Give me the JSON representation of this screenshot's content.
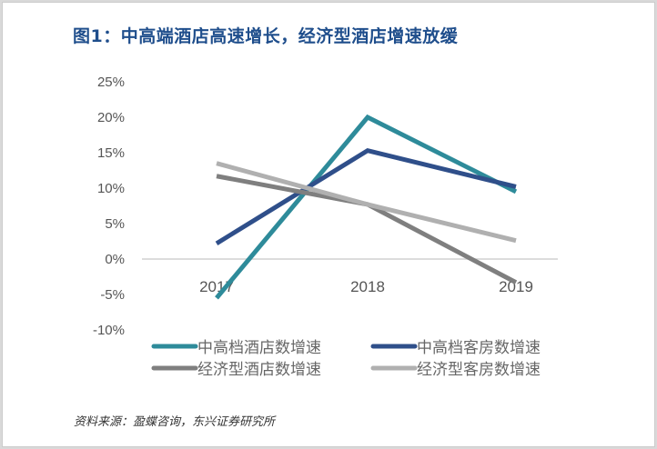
{
  "title": "图1：中高端酒店高速增长，经济型酒店增速放缓",
  "source": "资料来源：盈蝶咨询，东兴证券研究所",
  "chart_data": {
    "type": "line",
    "title": "图1：中高端酒店高速增长，经济型酒店增速放缓",
    "categories": [
      "2017",
      "2018",
      "2019"
    ],
    "ylim": [
      -10,
      25
    ],
    "yticks": [
      25,
      20,
      15,
      10,
      5,
      0,
      -5,
      -10
    ],
    "ytick_labels": [
      "25%",
      "20%",
      "15%",
      "10%",
      "5%",
      "0%",
      "-5%",
      "-10%"
    ],
    "grid": false,
    "legend_placement": "bottom",
    "series": [
      {
        "name": "中高档酒店数增速",
        "color": "#2e8b9a",
        "values": [
          -5.5,
          20.0,
          9.5
        ]
      },
      {
        "name": "中高档客房数增速",
        "color": "#2f4f8a",
        "values": [
          2.2,
          15.3,
          10.2
        ]
      },
      {
        "name": "经济型酒店数增速",
        "color": "#7f7f7f",
        "values": [
          11.7,
          7.7,
          -3.3
        ]
      },
      {
        "name": "经济型客房数增速",
        "color": "#b0b0b0",
        "values": [
          13.5,
          7.7,
          2.6
        ]
      }
    ]
  }
}
